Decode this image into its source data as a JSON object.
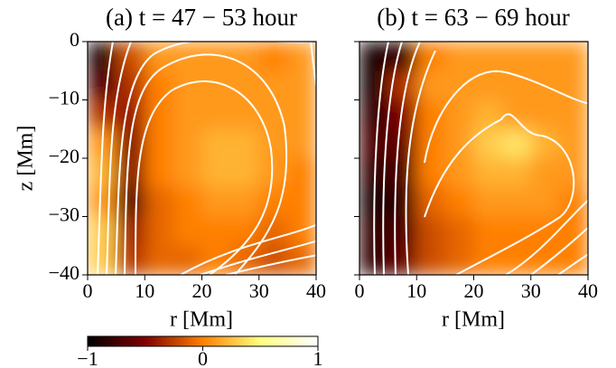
{
  "chart_data": [
    {
      "type": "heatmap",
      "title": "(a) t = 47 − 53 hour",
      "xlabel": "r [Mm]",
      "ylabel": "z [Mm]",
      "xlim": [
        0,
        40
      ],
      "xticks": [
        0,
        10,
        20,
        30,
        40
      ],
      "ylim": [
        -40,
        0
      ],
      "yticks": [
        0,
        {
          "value": -10,
          "label": "−10"
        },
        {
          "value": -20,
          "label": "−20"
        },
        {
          "value": -30,
          "label": "−30"
        },
        {
          "value": -40,
          "label": "−40"
        }
      ],
      "colormap": "afmhot",
      "clim": [
        -1,
        1
      ],
      "z": [
        [
          -0.9,
          -0.2,
          0.1,
          0.1,
          0.1,
          0.1,
          0.0,
          0.1
        ],
        [
          -0.7,
          -0.3,
          0.0,
          0.1,
          0.1,
          0.1,
          0.1,
          0.1
        ],
        [
          -0.3,
          -0.4,
          0.0,
          0.1,
          0.1,
          0.1,
          0.1,
          0.1
        ],
        [
          0.1,
          -0.5,
          0.0,
          0.1,
          0.2,
          0.2,
          0.1,
          0.1
        ],
        [
          0.2,
          -0.5,
          0.0,
          0.1,
          0.2,
          0.2,
          0.1,
          0.0
        ],
        [
          0.1,
          -0.7,
          -0.1,
          0.0,
          0.1,
          0.1,
          0.0,
          0.0
        ],
        [
          0.3,
          -0.4,
          -0.1,
          0.0,
          0.0,
          0.0,
          -0.1,
          0.0
        ],
        [
          0.3,
          -0.3,
          -0.1,
          -0.1,
          0.0,
          -0.1,
          -0.2,
          -0.1
        ]
      ]
    },
    {
      "type": "heatmap",
      "title": "(b) t = 63 − 69 hour",
      "xlabel": "r [Mm]",
      "xlim": [
        0,
        40
      ],
      "xticks": [
        0,
        10,
        20,
        30,
        40
      ],
      "ylim": [
        -40,
        0
      ],
      "yticks": [
        0,
        -10,
        -20,
        -30,
        -40
      ],
      "show_yticklabels": false,
      "colormap": "afmhot",
      "clim": [
        -1,
        1
      ],
      "z": [
        [
          -0.9,
          -0.8,
          0.0,
          0.1,
          0.1,
          0.1,
          0.1,
          0.1
        ],
        [
          -0.9,
          -0.3,
          0.1,
          0.1,
          0.1,
          0.1,
          0.1,
          0.1
        ],
        [
          -0.8,
          -0.5,
          0.0,
          0.1,
          0.2,
          0.1,
          0.1,
          0.1
        ],
        [
          -0.7,
          -0.6,
          0.0,
          0.1,
          0.3,
          0.4,
          0.2,
          0.1
        ],
        [
          -0.8,
          -0.7,
          0.0,
          0.1,
          0.2,
          0.2,
          0.1,
          0.1
        ],
        [
          -0.9,
          -0.8,
          -0.1,
          0.0,
          0.1,
          0.1,
          0.1,
          0.0
        ],
        [
          -0.8,
          -0.7,
          -0.2,
          -0.1,
          0.0,
          0.0,
          0.0,
          0.0
        ],
        [
          -0.8,
          -0.6,
          -0.2,
          -0.1,
          0.0,
          0.0,
          0.0,
          0.0
        ]
      ]
    }
  ],
  "colorbar": {
    "lim": [
      -1,
      1
    ],
    "ticks": [
      {
        "value": -1,
        "label": "−1"
      },
      0,
      1
    ],
    "colormap": "afmhot"
  }
}
